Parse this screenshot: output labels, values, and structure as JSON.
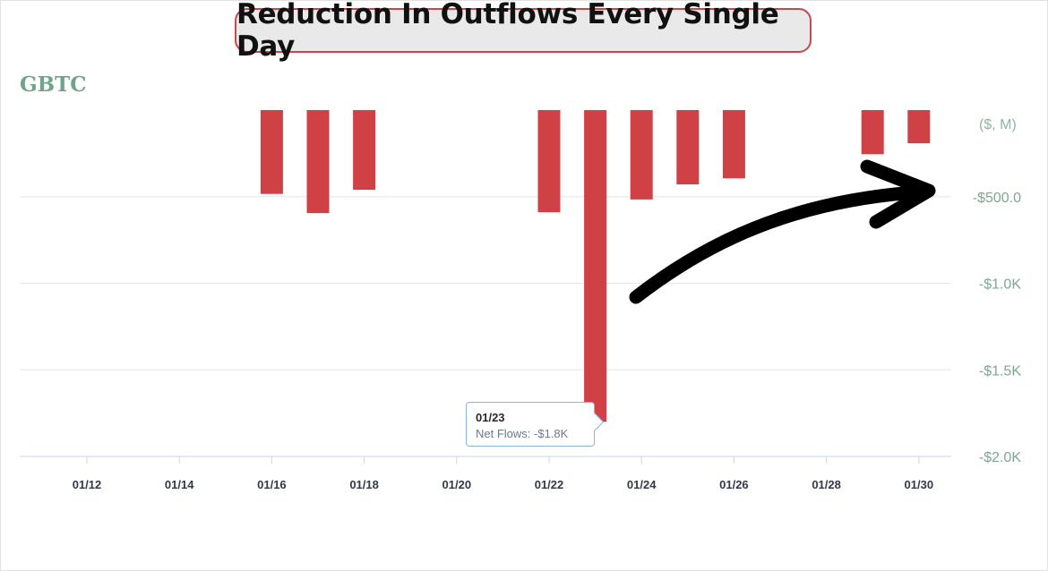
{
  "headline": "Reduction In Outflows Every Single Day",
  "ticker": "GBTC",
  "unit_label": "($, M)",
  "tooltip": {
    "date": "01/23",
    "text": "Net Flows: -$1.8K"
  },
  "colors": {
    "bar": "#d04145",
    "axis_text": "#7aa98f",
    "ticker": "#6fa48a",
    "arrow": "#000000"
  },
  "chart_data": {
    "type": "bar",
    "x_tick_labels": [
      "01/12",
      "01/14",
      "01/16",
      "01/18",
      "01/20",
      "01/22",
      "01/24",
      "01/26",
      "01/28",
      "01/30"
    ],
    "y_tick_labels": [
      "-$500.0",
      "-$1.0K",
      "-$1.5K",
      "-$2.0K"
    ],
    "ylim": [
      -2000,
      0
    ],
    "categories": [
      "01/16",
      "01/17",
      "01/18",
      "01/22",
      "01/23",
      "01/24",
      "01/25",
      "01/26",
      "01/29",
      "01/30"
    ],
    "values": [
      -484,
      -595,
      -460,
      -590,
      -1800,
      -516,
      -429,
      -394,
      -255,
      -192
    ],
    "grid": true,
    "annotation": "arrow pointing to -$500.0"
  }
}
